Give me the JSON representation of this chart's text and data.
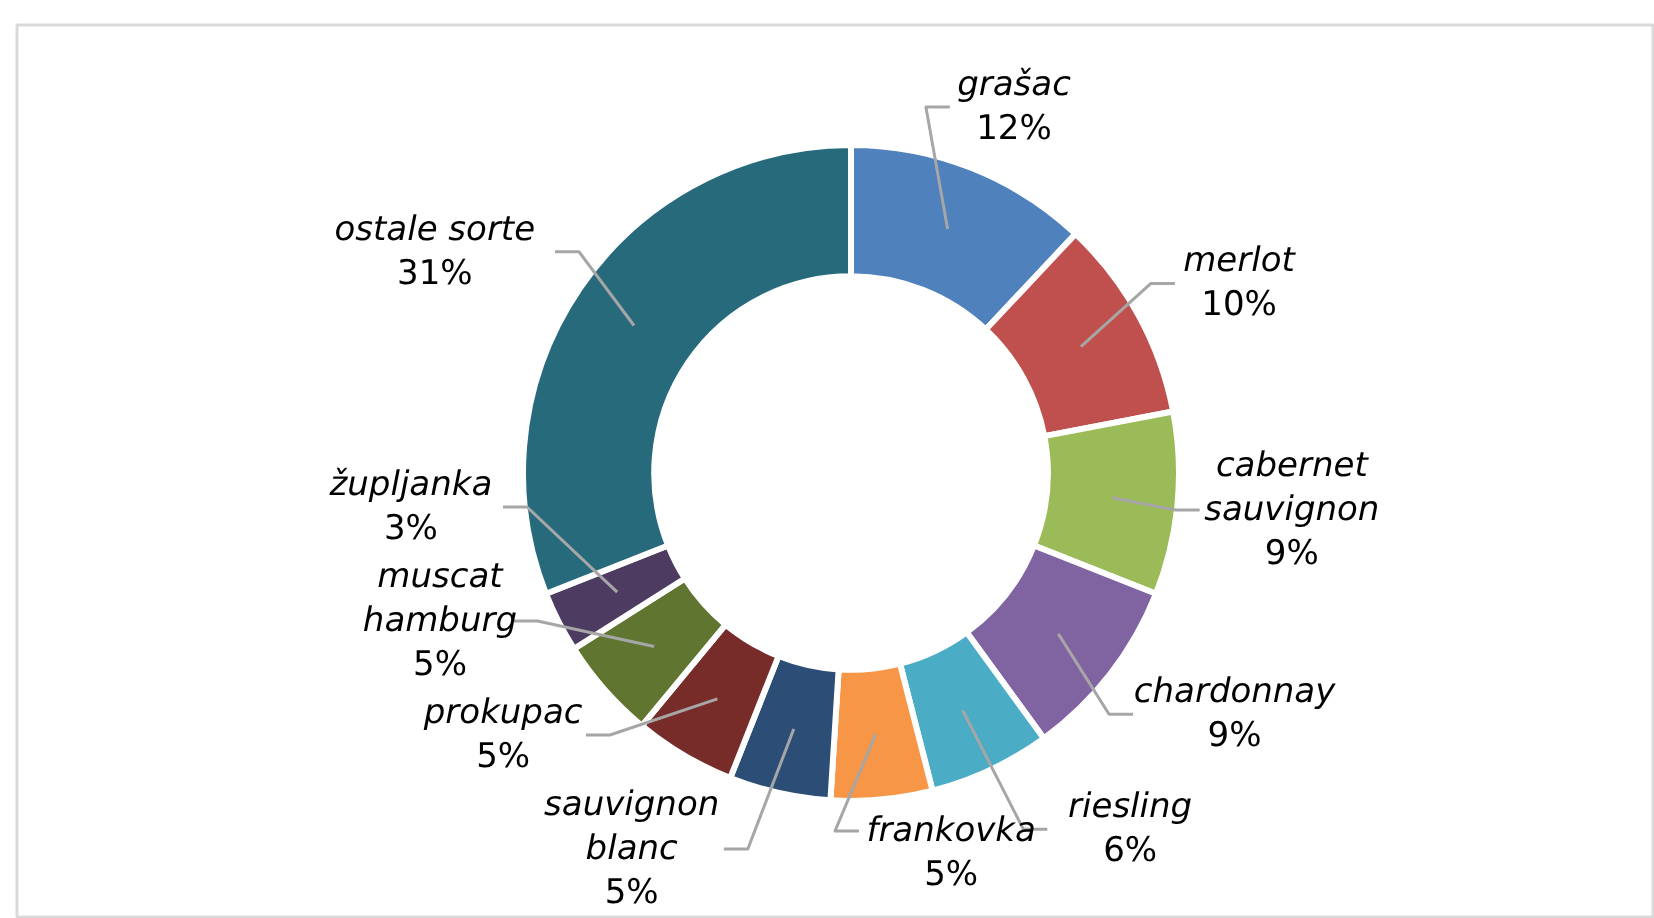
{
  "chart_data": {
    "type": "donut",
    "categories": [
      "grašac",
      "merlot",
      "cabernet sauvignon",
      "chardonnay",
      "riesling",
      "frankovka",
      "sauvignon blanc",
      "prokupac",
      "muscat hamburg",
      "župljanka",
      "ostale sorte"
    ],
    "values": [
      12,
      10,
      9,
      9,
      6,
      5,
      5,
      5,
      5,
      3,
      31
    ],
    "colors": [
      "#4f81bd",
      "#c0504d",
      "#9bbb59",
      "#8064a2",
      "#4bacc6",
      "#f79646",
      "#2c4d75",
      "#772c2a",
      "#5f7530",
      "#4d3b62",
      "#276a7c"
    ],
    "value_labels": [
      "12%",
      "10%",
      "9%",
      "9%",
      "6%",
      "5%",
      "5%",
      "5%",
      "5%",
      "3%",
      "31%"
    ]
  }
}
